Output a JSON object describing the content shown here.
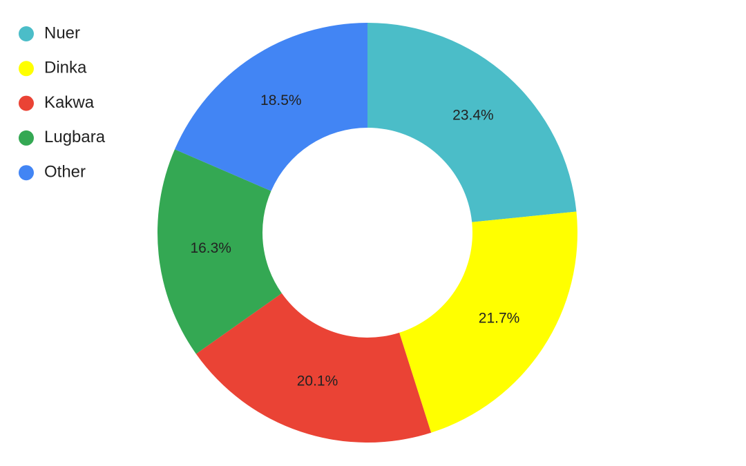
{
  "chart_data": {
    "type": "donut",
    "categories": [
      "Nuer",
      "Dinka",
      "Kakwa",
      "Lugbara",
      "Other"
    ],
    "values": [
      23.4,
      21.7,
      20.1,
      16.3,
      18.5
    ],
    "value_labels": [
      "23.4%",
      "21.7%",
      "20.1%",
      "16.3%",
      "18.5%"
    ],
    "colors": [
      "#4bbdc8",
      "#ffff00",
      "#ea4335",
      "#34a853",
      "#4285f4"
    ],
    "legend": "top-left"
  }
}
